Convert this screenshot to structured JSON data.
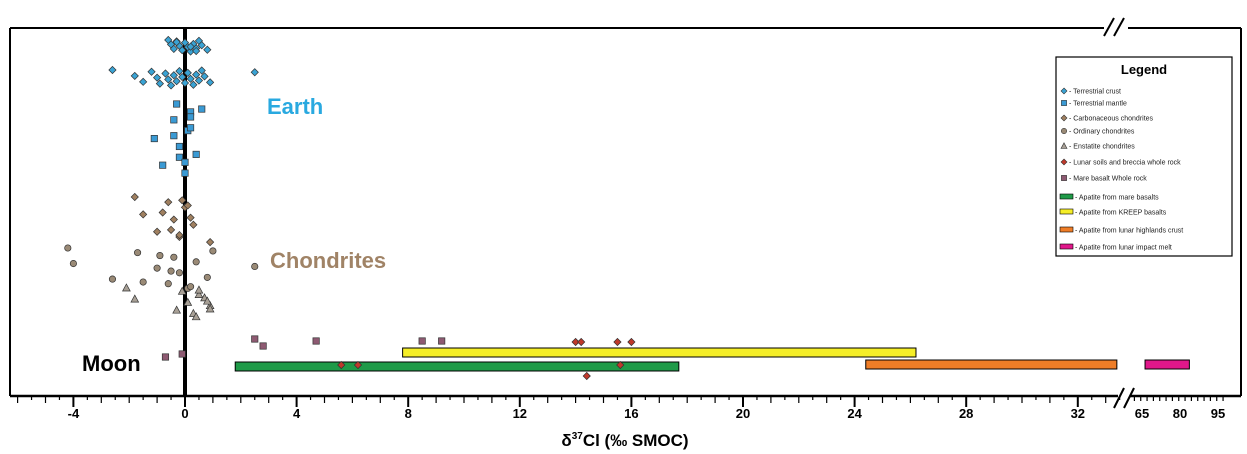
{
  "colors": {
    "earth": "#29a9e0",
    "chondrites": "#a08366",
    "terrestrial_crust": "#3aa3d4",
    "terrestrial_mantle": "#3a9ad4",
    "carbonaceous": "#a08060",
    "ordinary": "#9a8a76",
    "enstatite": "#a8a096",
    "lunar_soils": "#c0392b",
    "mare_basalt": "#8e5a72",
    "mare_apatite": "#1f9a48",
    "kreep_apatite": "#f5ee28",
    "highlands_apatite": "#ef7d27",
    "impact_apatite": "#e0178a"
  },
  "chart_data": {
    "type": "scatter",
    "xlabel_prefix": "δ",
    "xlabel_sup": "37",
    "xlabel_rest": "Cl (‰ SMOC)",
    "xticks_main": [
      "-4",
      "0",
      "4",
      "8",
      "12",
      "16",
      "20",
      "24",
      "28",
      "32"
    ],
    "xticks_break": [
      "65",
      "80",
      "95"
    ],
    "group_labels": [
      "Earth",
      "Chondrites",
      "Moon"
    ],
    "legend": {
      "title": "Legend",
      "items": [
        {
          "label": "- Terrestrial crust",
          "marker": "diamond",
          "color_key": "terrestrial_crust"
        },
        {
          "label": "- Terrestrial mantle",
          "marker": "square",
          "color_key": "terrestrial_mantle"
        },
        {
          "label": "- Carbonaceous chondrites",
          "marker": "diamond",
          "color_key": "carbonaceous"
        },
        {
          "label": "- Ordinary chondrites",
          "marker": "circle",
          "color_key": "ordinary"
        },
        {
          "label": "- Enstatite chondrites",
          "marker": "triangle",
          "color_key": "enstatite"
        },
        {
          "label": "- Lunar soils and breccia whole rock",
          "marker": "diamond",
          "color_key": "lunar_soils"
        },
        {
          "label": "- Mare basalt Whole rock",
          "marker": "square",
          "color_key": "mare_basalt"
        },
        {
          "label": "- Apatite from mare basalts",
          "marker": "bar",
          "color_key": "mare_apatite"
        },
        {
          "label": "- Apatite from KREEP basalts",
          "marker": "bar",
          "color_key": "kreep_apatite"
        },
        {
          "label": "- Apatite from lunar highlands crust",
          "marker": "bar",
          "color_key": "highlands_apatite"
        },
        {
          "label": "- Apatite from lunar impact melt",
          "marker": "bar",
          "color_key": "impact_apatite"
        }
      ]
    },
    "series": [
      {
        "key": "terrestrial_crust",
        "marker": "diamond",
        "row": "earth_crust_top",
        "values": [
          -0.6,
          -0.5,
          -0.4,
          -0.3,
          -0.2,
          -0.1,
          0,
          0.1,
          0.2,
          0.3,
          0.4,
          0.5,
          0.6,
          0.8,
          -0.3,
          0.2,
          0.4
        ]
      },
      {
        "key": "terrestrial_crust",
        "marker": "diamond",
        "row": "earth_crust_mid",
        "values": [
          -2.6,
          -1.8,
          -1.5,
          -1.2,
          -1.0,
          -0.9,
          -0.7,
          -0.6,
          -0.5,
          -0.4,
          -0.3,
          -0.2,
          -0.1,
          0,
          0.1,
          0.2,
          0.3,
          0.4,
          0.5,
          0.6,
          0.7,
          0.9,
          2.5
        ]
      },
      {
        "key": "terrestrial_mantle",
        "marker": "square",
        "row": "earth_mantle",
        "values": [
          -0.3,
          0.1,
          -0.2,
          0.2,
          -1.1,
          -0.8,
          -0.4,
          -0.2,
          0,
          0.2,
          0.4,
          0.6,
          -0.4,
          0,
          0.2
        ]
      },
      {
        "key": "carbonaceous",
        "marker": "diamond",
        "row": "chon_carb",
        "values": [
          -1.8,
          -1.5,
          -1.0,
          -0.6,
          -0.4,
          -0.2,
          0,
          0.3,
          0.9,
          -0.8,
          -0.5,
          -0.1,
          0.2,
          -0.2,
          0.1
        ]
      },
      {
        "key": "ordinary",
        "marker": "circle",
        "row": "chon_ord",
        "values": [
          -4.2,
          -4.0,
          -2.6,
          -1.7,
          -1.0,
          -0.6,
          -0.4,
          -0.2,
          0.1,
          0.4,
          0.8,
          1.0,
          2.5,
          -1.5,
          -0.9,
          -0.5,
          0.2
        ]
      },
      {
        "key": "enstatite",
        "marker": "triangle",
        "row": "chon_ens",
        "values": [
          -2.1,
          -1.8,
          -0.3,
          -0.1,
          0.1,
          0.3,
          0.5,
          0.9,
          0.4,
          0.7,
          0.9,
          0.5,
          0.8
        ]
      },
      {
        "key": "lunar_soils",
        "marker": "diamond",
        "row": "moon",
        "values": [
          14.0,
          14.2,
          15.5,
          16.0,
          5.6,
          6.2,
          15.6,
          14.4
        ]
      },
      {
        "key": "mare_basalt",
        "marker": "square",
        "row": "moon",
        "values": [
          2.5,
          2.8,
          4.7,
          8.5,
          9.2,
          -0.7,
          -0.1
        ]
      }
    ],
    "ranges": [
      {
        "key": "kreep_apatite",
        "from": 7.8,
        "to": 26.2
      },
      {
        "key": "mare_apatite",
        "from": 1.8,
        "to": 17.7
      },
      {
        "key": "highlands_apatite",
        "from": 24.4,
        "to": 33.4
      },
      {
        "key": "impact_apatite",
        "from": 66.2,
        "to": 83.7
      }
    ],
    "axis": {
      "main_range": [
        -4.9,
        33.8
      ],
      "break_range": [
        62,
        97
      ]
    }
  }
}
